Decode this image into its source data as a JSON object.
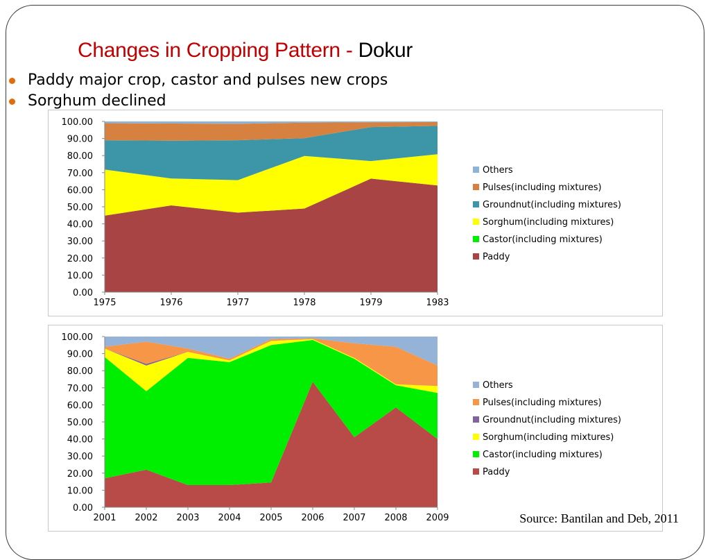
{
  "slide": {
    "title_red": "Changes in Cropping Pattern - ",
    "title_black": "Dokur",
    "bullet_color": "#e36c0a",
    "bullets": [
      "Paddy major crop, castor and pulses new crops",
      "Sorghum declined"
    ],
    "source": "Source: Bantilan and Deb, 2011"
  },
  "chart_data": [
    {
      "type": "area",
      "stacked": true,
      "title": "",
      "xlabel": "",
      "ylabel": "",
      "categories": [
        "1975",
        "1976",
        "1977",
        "1978",
        "1979",
        "1983"
      ],
      "ylim": [
        0,
        100
      ],
      "yticks": [
        "0.00",
        "10.00",
        "20.00",
        "30.00",
        "40.00",
        "50.00",
        "60.00",
        "70.00",
        "80.00",
        "90.00",
        "100.00"
      ],
      "grid": false,
      "legend_position": "right",
      "series": [
        {
          "name": "Paddy",
          "color": "#a84444",
          "values": [
            44.8,
            50.8,
            46.6,
            49.0,
            66.5,
            62.5
          ]
        },
        {
          "name": "Castor(including mixtures)",
          "color": "#00ee00",
          "values": [
            0,
            0,
            0,
            0,
            0,
            0
          ]
        },
        {
          "name": "Sorghum(including mixtures)",
          "color": "#ffff00",
          "values": [
            27.0,
            15.8,
            19.0,
            30.8,
            10.3,
            18.3
          ]
        },
        {
          "name": "Groundnut(including mixtures)",
          "color": "#3d96a8",
          "values": [
            17.2,
            22.1,
            23.4,
            10.4,
            19.9,
            16.6
          ]
        },
        {
          "name": "Pulses(including mixtures)",
          "color": "#d6813f",
          "values": [
            10.0,
            10.1,
            9.6,
            9.1,
            2.8,
            2.2
          ]
        },
        {
          "name": "Others",
          "color": "#8eb3d9",
          "values": [
            1.0,
            1.2,
            1.4,
            0.7,
            0.5,
            0.4
          ]
        }
      ]
    },
    {
      "type": "area",
      "stacked": true,
      "title": "",
      "xlabel": "",
      "ylabel": "",
      "categories": [
        "2001",
        "2002",
        "2003",
        "2004",
        "2005",
        "2006",
        "2007",
        "2008",
        "2009"
      ],
      "ylim": [
        0,
        100
      ],
      "yticks": [
        "0.00",
        "10.00",
        "20.00",
        "30.00",
        "40.00",
        "50.00",
        "60.00",
        "70.00",
        "80.00",
        "90.00",
        "100.00"
      ],
      "grid": false,
      "legend_position": "right",
      "series": [
        {
          "name": "Paddy",
          "color": "#b84a48",
          "values": [
            17.0,
            22.0,
            13.0,
            13.0,
            14.5,
            73.5,
            41.0,
            58.5,
            40.0
          ]
        },
        {
          "name": "Castor(including mixtures)",
          "color": "#00ee00",
          "values": [
            71.0,
            46.0,
            74.5,
            72.0,
            80.5,
            24.5,
            46.0,
            13.0,
            27.0
          ]
        },
        {
          "name": "Sorghum(including mixtures)",
          "color": "#ffff00",
          "values": [
            5.0,
            15.0,
            3.5,
            1.0,
            2.5,
            0.5,
            0.5,
            0.5,
            4.0
          ]
        },
        {
          "name": "Groundnut(including mixtures)",
          "color": "#8064a2",
          "values": [
            0,
            1.0,
            0,
            0,
            0,
            0,
            0,
            0,
            0
          ]
        },
        {
          "name": "Pulses(including mixtures)",
          "color": "#f79646",
          "values": [
            1.0,
            13.0,
            2.0,
            1.0,
            1.0,
            0.5,
            8.5,
            22.0,
            12.0
          ]
        },
        {
          "name": "Others",
          "color": "#95b3d7",
          "values": [
            6.0,
            3.0,
            7.0,
            13.0,
            1.5,
            1.0,
            4.0,
            6.0,
            17.0
          ]
        }
      ]
    }
  ]
}
